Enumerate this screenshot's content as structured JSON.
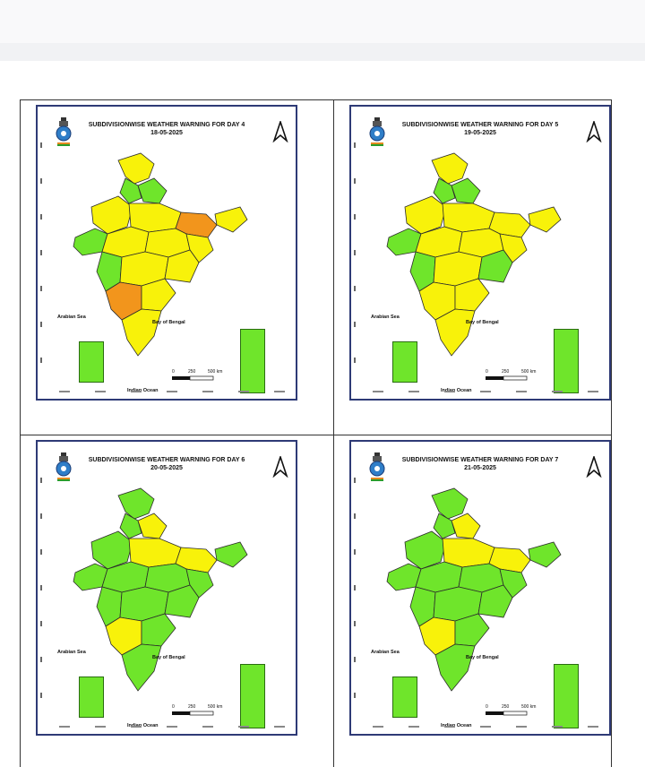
{
  "panels": [
    {
      "title": "SUBDIVISIONWISE WEATHER WARNING FOR DAY 4",
      "date": "18-05-2025",
      "scale_labels": [
        "0",
        "250",
        "500 km"
      ],
      "theme": "yellow"
    },
    {
      "title": "SUBDIVISIONWISE WEATHER WARNING FOR DAY 5",
      "date": "19-05-2025",
      "scale_labels": [
        "0",
        "250",
        "500 km"
      ],
      "theme": "yellow"
    },
    {
      "title": "SUBDIVISIONWISE WEATHER WARNING FOR DAY 6",
      "date": "20-05-2025",
      "scale_labels": [
        "0",
        "250",
        "500 km"
      ],
      "theme": "green"
    },
    {
      "title": "SUBDIVISIONWISE WEATHER WARNING FOR DAY 7",
      "date": "21-05-2025",
      "scale_labels": [
        "0",
        "250",
        "500 km"
      ],
      "theme": "green"
    }
  ],
  "labels": {
    "arabian_sea": "Arabian Sea",
    "bay_of_bengal": "Bay of Bengal",
    "indian_ocean": "Indian Ocean"
  },
  "colors": {
    "yellow": "#f8f20a",
    "green": "#6fe52b",
    "orange": "#f2951c",
    "border": "#2e3a76"
  }
}
